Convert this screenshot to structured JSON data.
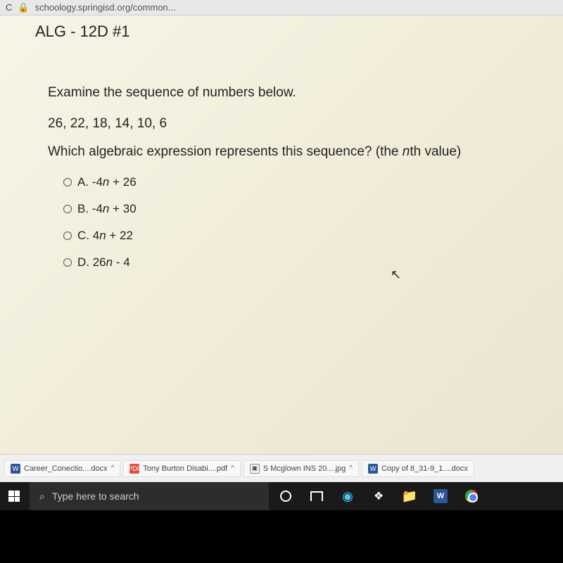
{
  "browser": {
    "url_partial": "schoology.springisd.org/common..."
  },
  "page": {
    "title": "ALG - 12D #1"
  },
  "question": {
    "prompt1": "Examine the sequence of numbers below.",
    "sequence": "26, 22, 18, 14, 10, 6",
    "prompt2_pre": "Which algebraic expression represents this sequence? (the ",
    "prompt2_italic": "n",
    "prompt2_post": "th value)",
    "options": [
      {
        "letter": "A.",
        "pre": " -4",
        "var": "n",
        "post": " + 26"
      },
      {
        "letter": "B.",
        "pre": " -4",
        "var": "n",
        "post": " + 30"
      },
      {
        "letter": "C.",
        "pre": " 4",
        "var": "n",
        "post": " + 22"
      },
      {
        "letter": "D.",
        "pre": " 26",
        "var": "n",
        "post": " - 4"
      }
    ]
  },
  "downloads": [
    {
      "icon": "docx",
      "name": "Career_Conectio....docx"
    },
    {
      "icon": "pdf",
      "name": "Tony Burton Disabi....pdf"
    },
    {
      "icon": "img",
      "name": "S Mcglown INS 20....jpg"
    },
    {
      "icon": "docx",
      "name": "Copy of 8_31-9_1....docx"
    }
  ],
  "taskbar": {
    "search_placeholder": "Type here to search"
  },
  "colors": {
    "bg_light": "#f8f5e8",
    "taskbar_bg": "#1a1a1a"
  }
}
